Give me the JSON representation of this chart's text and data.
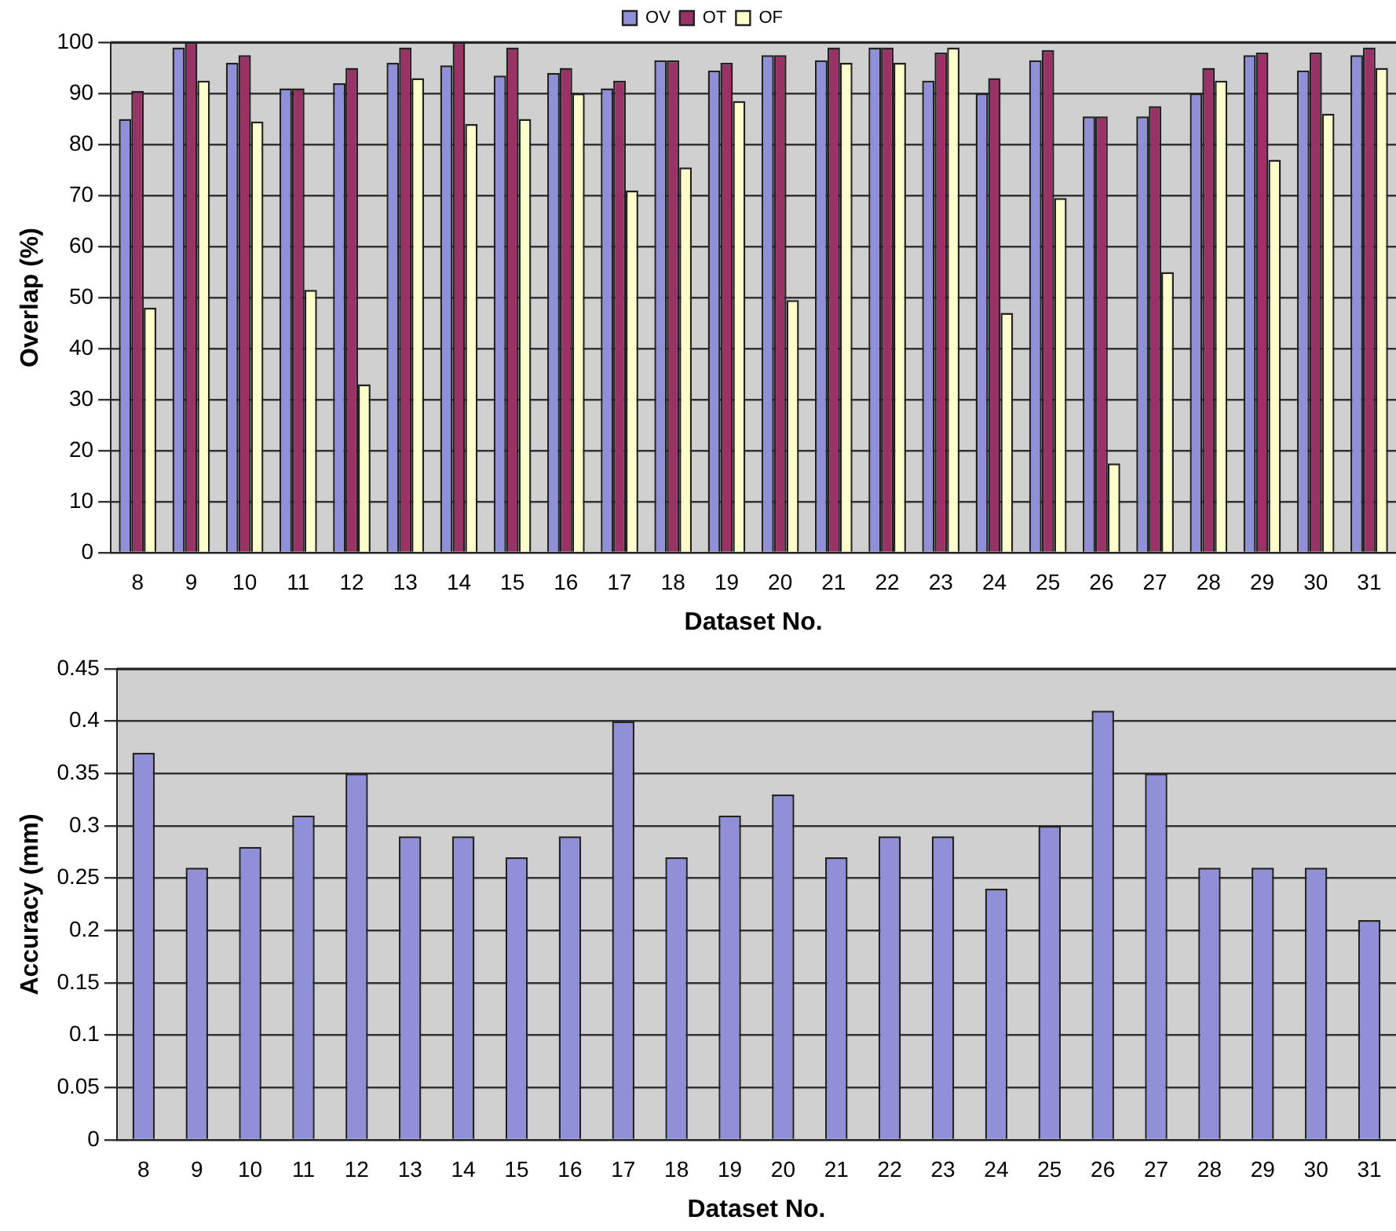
{
  "chart_data": [
    {
      "type": "bar",
      "xlabel": "Dataset No.",
      "ylabel": "Overlap (%)",
      "categories": [
        "8",
        "9",
        "10",
        "11",
        "12",
        "13",
        "14",
        "15",
        "16",
        "17",
        "18",
        "19",
        "20",
        "21",
        "22",
        "23",
        "24",
        "25",
        "26",
        "27",
        "28",
        "29",
        "30",
        "31"
      ],
      "series": [
        {
          "name": "OV",
          "color": "#9090d8",
          "values": [
            85,
            99,
            96,
            91,
            92,
            96,
            95.5,
            93.5,
            94,
            91,
            96.5,
            94.5,
            97.5,
            96.5,
            99,
            92.5,
            90,
            96.5,
            85.5,
            85.5,
            90,
            97.5,
            94.5,
            97.5
          ]
        },
        {
          "name": "OT",
          "color": "#993366",
          "values": [
            90.5,
            100,
            97.5,
            91,
            95,
            99,
            100,
            99,
            95,
            92.5,
            96.5,
            96,
            97.5,
            99,
            99,
            98,
            93,
            98.5,
            85.5,
            87.5,
            95,
            98,
            98,
            99
          ]
        },
        {
          "name": "OF",
          "color": "#ffffcc",
          "values": [
            48,
            92.5,
            84.5,
            51.5,
            33,
            93,
            84,
            85,
            90,
            71,
            75.5,
            88.5,
            49.5,
            96,
            96,
            99,
            47,
            69.5,
            17.5,
            55,
            92.5,
            77,
            86,
            95
          ]
        }
      ],
      "ylim": [
        0,
        100
      ],
      "yticks": [
        0,
        10,
        20,
        30,
        40,
        50,
        60,
        70,
        80,
        90,
        100
      ],
      "grid": "y",
      "legend": "top"
    },
    {
      "type": "bar",
      "xlabel": "Dataset No.",
      "ylabel": "Accuracy (mm)",
      "categories": [
        "8",
        "9",
        "10",
        "11",
        "12",
        "13",
        "14",
        "15",
        "16",
        "17",
        "18",
        "19",
        "20",
        "21",
        "22",
        "23",
        "24",
        "25",
        "26",
        "27",
        "28",
        "29",
        "30",
        "31"
      ],
      "values": [
        0.37,
        0.26,
        0.28,
        0.31,
        0.35,
        0.29,
        0.29,
        0.27,
        0.29,
        0.4,
        0.27,
        0.31,
        0.33,
        0.27,
        0.29,
        0.29,
        0.24,
        0.3,
        0.41,
        0.35,
        0.26,
        0.26,
        0.26,
        0.21
      ],
      "color": "#9090d8",
      "ylim": [
        0,
        0.45
      ],
      "yticks": [
        0,
        0.05,
        0.1,
        0.15,
        0.2,
        0.25,
        0.3,
        0.35,
        0.4,
        0.45
      ],
      "grid": "y"
    }
  ]
}
